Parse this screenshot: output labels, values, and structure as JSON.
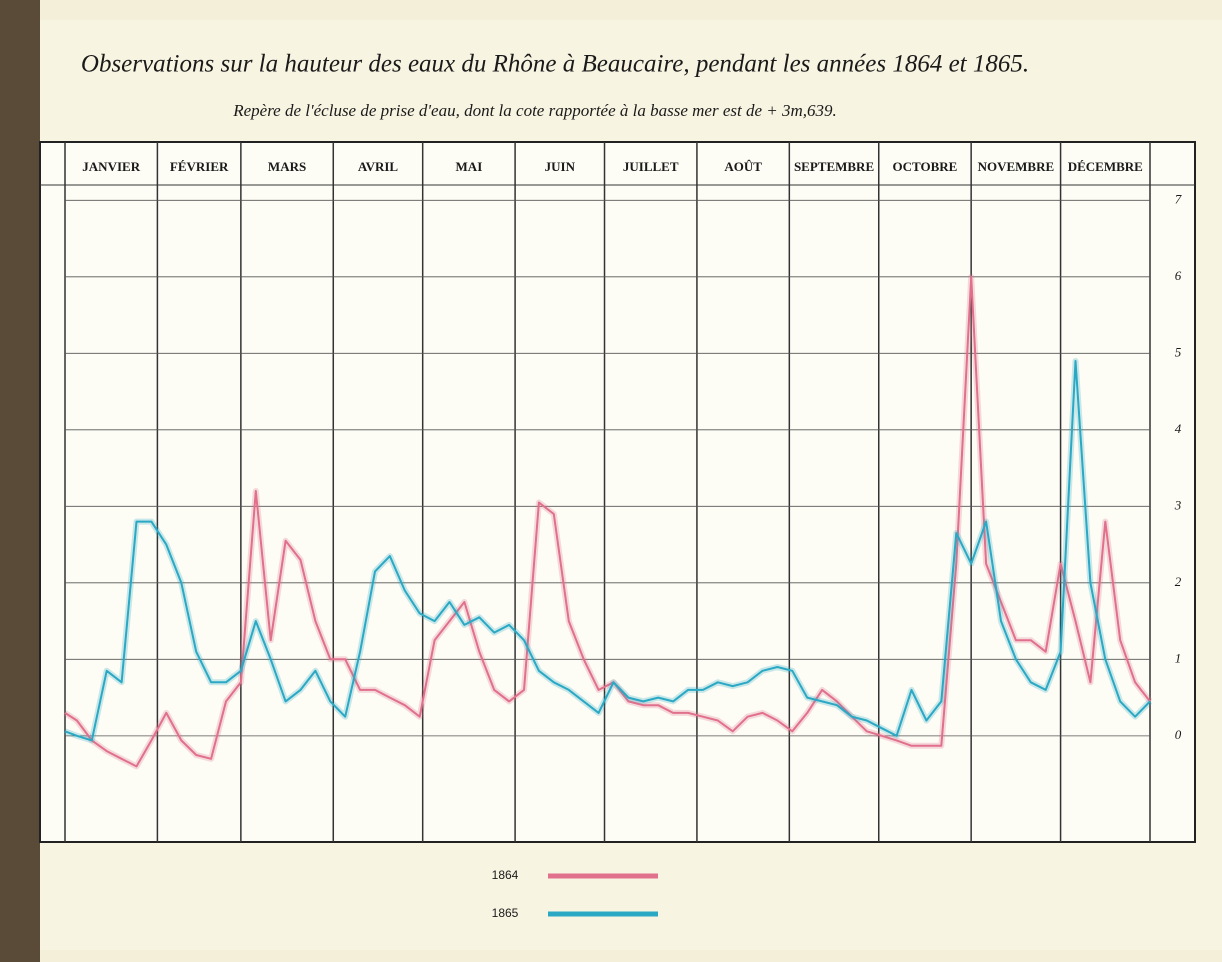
{
  "chart_data": {
    "type": "line",
    "title": "Observations sur la hauteur des eaux du Rhône à Beaucaire, pendant les années 1864 et 1865.",
    "subtitle": "Repère de l'écluse de prise d'eau, dont la cote rapportée à la basse mer est de + 3m,639.",
    "x": [
      1,
      5,
      10,
      15,
      20,
      25,
      30,
      35,
      40,
      45,
      50,
      55,
      60,
      65,
      70,
      75,
      80,
      85,
      90,
      95,
      100,
      105,
      110,
      115,
      120,
      125,
      130,
      135,
      140,
      145,
      150,
      155,
      160,
      165,
      170,
      175,
      180,
      185,
      190,
      195,
      200,
      205,
      210,
      215,
      220,
      225,
      230,
      235,
      240,
      245,
      250,
      255,
      260,
      265,
      270,
      275,
      280,
      285,
      290,
      295,
      300,
      305,
      310,
      315,
      320,
      325,
      330,
      335,
      340,
      345,
      350,
      355,
      360,
      365
    ],
    "xlim": [
      1,
      365
    ],
    "xticks": [
      {
        "value": 1,
        "label": "JANVIER"
      },
      {
        "value": 32,
        "label": "FÉVRIER"
      },
      {
        "value": 60,
        "label": "MARS"
      },
      {
        "value": 91,
        "label": "AVRIL"
      },
      {
        "value": 121,
        "label": "MAI"
      },
      {
        "value": 152,
        "label": "JUIN"
      },
      {
        "value": 182,
        "label": "JUILLET"
      },
      {
        "value": 213,
        "label": "AOÛT"
      },
      {
        "value": 244,
        "label": "SEPTEMBRE"
      },
      {
        "value": 274,
        "label": "OCTOBRE"
      },
      {
        "value": 305,
        "label": "NOVEMBRE"
      },
      {
        "value": 335,
        "label": "DÉCEMBRE"
      }
    ],
    "ylim": [
      -1.1,
      7.2
    ],
    "yticks": [
      0,
      1,
      2,
      3,
      4,
      5,
      6,
      7
    ],
    "grid": true,
    "series": [
      {
        "name": "1864",
        "color": "#e0708c",
        "values": [
          0.3,
          0.2,
          -0.06,
          -0.2,
          -0.3,
          -0.4,
          -0.06,
          0.3,
          -0.06,
          -0.25,
          -0.3,
          0.45,
          0.7,
          3.2,
          1.25,
          2.55,
          2.3,
          1.5,
          1.0,
          1.0,
          0.6,
          0.6,
          0.5,
          0.4,
          0.25,
          1.25,
          1.5,
          1.75,
          1.1,
          0.6,
          0.45,
          0.6,
          3.05,
          2.9,
          1.5,
          1.0,
          0.6,
          0.7,
          0.45,
          0.4,
          0.4,
          0.3,
          0.3,
          0.25,
          0.2,
          0.06,
          0.25,
          0.3,
          0.2,
          0.06,
          0.3,
          0.6,
          0.45,
          0.25,
          0.06,
          0,
          -0.06,
          -0.13,
          -0.13,
          -0.13,
          2.25,
          6.0,
          2.25,
          1.75,
          1.25,
          1.25,
          1.1,
          2.25,
          1.5,
          0.7,
          2.8,
          1.25,
          0.7,
          0.45
        ]
      },
      {
        "name": "1865",
        "color": "#2aa8c4",
        "values": [
          0.06,
          0,
          -0.06,
          0.85,
          0.7,
          2.8,
          2.8,
          2.5,
          2.0,
          1.1,
          0.7,
          0.7,
          0.85,
          1.5,
          1.0,
          0.45,
          0.6,
          0.85,
          0.45,
          0.25,
          1.1,
          2.15,
          2.35,
          1.9,
          1.6,
          1.5,
          1.75,
          1.45,
          1.55,
          1.35,
          1.45,
          1.25,
          0.85,
          0.7,
          0.6,
          0.45,
          0.3,
          0.7,
          0.5,
          0.45,
          0.5,
          0.45,
          0.6,
          0.6,
          0.7,
          0.65,
          0.7,
          0.85,
          0.9,
          0.85,
          0.5,
          0.45,
          0.4,
          0.25,
          0.2,
          0.1,
          0,
          0.6,
          0.2,
          0.45,
          2.65,
          2.25,
          2.8,
          1.5,
          1.0,
          0.7,
          0.6,
          1.1,
          4.9,
          2.0,
          1.0,
          0.45,
          0.25,
          0.45
        ]
      }
    ]
  }
}
